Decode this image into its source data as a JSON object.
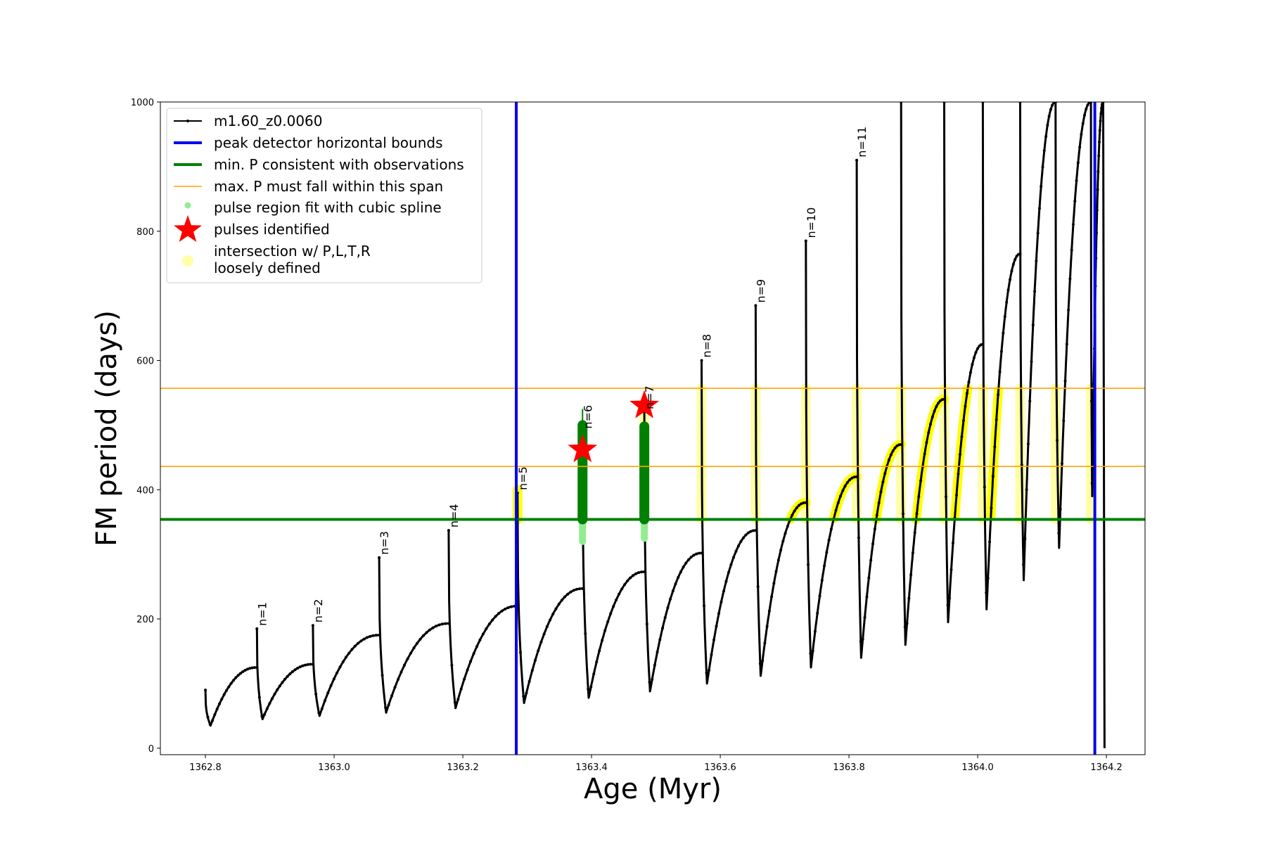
{
  "chart_data": {
    "type": "line",
    "xlabel": "Age (Myr)",
    "ylabel": "FM period (days)",
    "xlim": [
      1362.73,
      1364.26
    ],
    "ylim": [
      -10,
      1000
    ],
    "xticks": [
      1362.8,
      1363.0,
      1363.2,
      1363.4,
      1363.6,
      1363.8,
      1364.0,
      1364.2
    ],
    "xtick_labels": [
      "1362.8",
      "1363.0",
      "1363.2",
      "1363.4",
      "1363.6",
      "1363.8",
      "1364.0",
      "1364.2"
    ],
    "yticks": [
      0,
      200,
      400,
      600,
      800,
      1000
    ],
    "ytick_labels": [
      "0",
      "200",
      "400",
      "600",
      "800",
      "1000"
    ],
    "grid": false,
    "legend_position": "top-left",
    "colors": {
      "model": "#000000",
      "bounds": "#0000ee",
      "min_period": "#008000",
      "max_period": "#ffa500",
      "spline": "#90ee90",
      "pulses": "#ff0000",
      "intersection": "#ffff00"
    },
    "legend": [
      {
        "label": "m1.60_z0.0060",
        "marker": "line-dot"
      },
      {
        "label": "peak detector horizontal bounds",
        "marker": "thick-line-blue"
      },
      {
        "label": "min. P consistent with observations",
        "marker": "thick-line-green"
      },
      {
        "label": "max. P must fall within this span",
        "marker": "thin-line-orange"
      },
      {
        "label": "pulse region fit with cubic spline",
        "marker": "dot-lightgreen"
      },
      {
        "label": "pulses identified",
        "marker": "star-red"
      },
      {
        "label": "intersection w/ P,L,T,R\nloosely defined",
        "marker": "circle-yellow"
      }
    ],
    "vertical_lines": [
      1363.283,
      1364.182
    ],
    "min_period": 354,
    "max_period_span": [
      436,
      557
    ],
    "series": [
      {
        "name": "m1.60_z0.0060",
        "kind": "pulse-cycles",
        "cycles": [
          {
            "t0": 1362.8,
            "t1": 1362.88,
            "start": 90,
            "min": 35,
            "peak": 125
          },
          {
            "t0": 1362.88,
            "t1": 1362.967,
            "start": 185,
            "min": 45,
            "peak": 130
          },
          {
            "t0": 1362.967,
            "t1": 1363.07,
            "start": 190,
            "min": 50,
            "peak": 175
          },
          {
            "t0": 1363.07,
            "t1": 1363.178,
            "start": 295,
            "min": 55,
            "peak": 193
          },
          {
            "t0": 1363.178,
            "t1": 1363.285,
            "start": 337,
            "min": 62,
            "peak": 220
          },
          {
            "t0": 1363.285,
            "t1": 1363.386,
            "start": 395,
            "min": 70,
            "peak": 247
          },
          {
            "t0": 1363.386,
            "t1": 1363.482,
            "start": 490,
            "min": 78,
            "peak": 273
          },
          {
            "t0": 1363.482,
            "t1": 1363.571,
            "start": 520,
            "min": 88,
            "peak": 302
          },
          {
            "t0": 1363.571,
            "t1": 1363.655,
            "start": 600,
            "min": 100,
            "peak": 337
          },
          {
            "t0": 1363.655,
            "t1": 1363.733,
            "start": 685,
            "min": 112,
            "peak": 380
          },
          {
            "t0": 1363.733,
            "t1": 1363.812,
            "start": 785,
            "min": 125,
            "peak": 420
          },
          {
            "t0": 1363.812,
            "t1": 1363.881,
            "start": 910,
            "min": 140,
            "peak": 470
          },
          {
            "t0": 1363.881,
            "t1": 1363.948,
            "start": 1000,
            "min": 160,
            "peak": 540
          },
          {
            "t0": 1363.948,
            "t1": 1364.008,
            "start": 1000,
            "min": 195,
            "peak": 625
          },
          {
            "t0": 1364.008,
            "t1": 1364.066,
            "start": 1000,
            "min": 215,
            "peak": 765
          },
          {
            "t0": 1364.066,
            "t1": 1364.121,
            "start": 1000,
            "min": 260,
            "peak": 1000
          },
          {
            "t0": 1364.121,
            "t1": 1364.176,
            "start": 1000,
            "min": 310,
            "peak": 1000
          },
          {
            "t0": 1364.176,
            "t1": 1364.195,
            "start": 1000,
            "min": 390,
            "peak": 1000
          }
        ],
        "end": {
          "x": 1364.197,
          "y": 0
        }
      }
    ],
    "pulses_identified": [
      {
        "x": 1363.386,
        "y": 462
      },
      {
        "x": 1363.482,
        "y": 530
      }
    ],
    "spline_regions": [
      {
        "x": 1363.386,
        "y_range": [
          320,
          500
        ]
      },
      {
        "x": 1363.482,
        "y_range": [
          325,
          498
        ]
      }
    ],
    "pulse_labels": [
      {
        "x": 1362.88,
        "y": 185,
        "label": "n=1"
      },
      {
        "x": 1362.967,
        "y": 190,
        "label": "n=2"
      },
      {
        "x": 1363.07,
        "y": 295,
        "label": "n=3"
      },
      {
        "x": 1363.178,
        "y": 337,
        "label": "n=4"
      },
      {
        "x": 1363.285,
        "y": 395,
        "label": "n=5"
      },
      {
        "x": 1363.386,
        "y": 490,
        "label": "n=6"
      },
      {
        "x": 1363.482,
        "y": 520,
        "label": "n=7"
      },
      {
        "x": 1363.571,
        "y": 600,
        "label": "n=8"
      },
      {
        "x": 1363.655,
        "y": 685,
        "label": "n=9"
      },
      {
        "x": 1363.733,
        "y": 785,
        "label": "n=10"
      },
      {
        "x": 1363.812,
        "y": 910,
        "label": "n=11"
      }
    ]
  }
}
